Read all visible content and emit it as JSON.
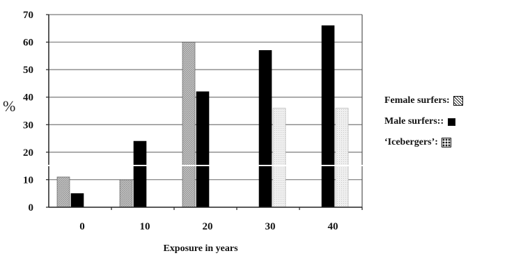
{
  "chart_data": {
    "type": "bar",
    "categories": [
      "0",
      "10",
      "20",
      "30",
      "40"
    ],
    "series": [
      {
        "name": "Female surfers:",
        "values": [
          11,
          10,
          60,
          null,
          null
        ],
        "color": "#b8b8b8",
        "pattern": "hatch"
      },
      {
        "name": "Male surfers::",
        "values": [
          5,
          24,
          42,
          57,
          66
        ],
        "color": "#000000",
        "pattern": "solid"
      },
      {
        "name": "‘Icebergers’:",
        "values": [
          null,
          null,
          null,
          36,
          36
        ],
        "color": "#e6e6e6",
        "pattern": "dots"
      }
    ],
    "xlabel": "Exposure in years",
    "ylabel": "%",
    "ylim": [
      0,
      70
    ],
    "yticks": [
      0,
      10,
      20,
      30,
      40,
      50,
      60,
      70
    ],
    "grid": true,
    "legend_position": "right"
  }
}
